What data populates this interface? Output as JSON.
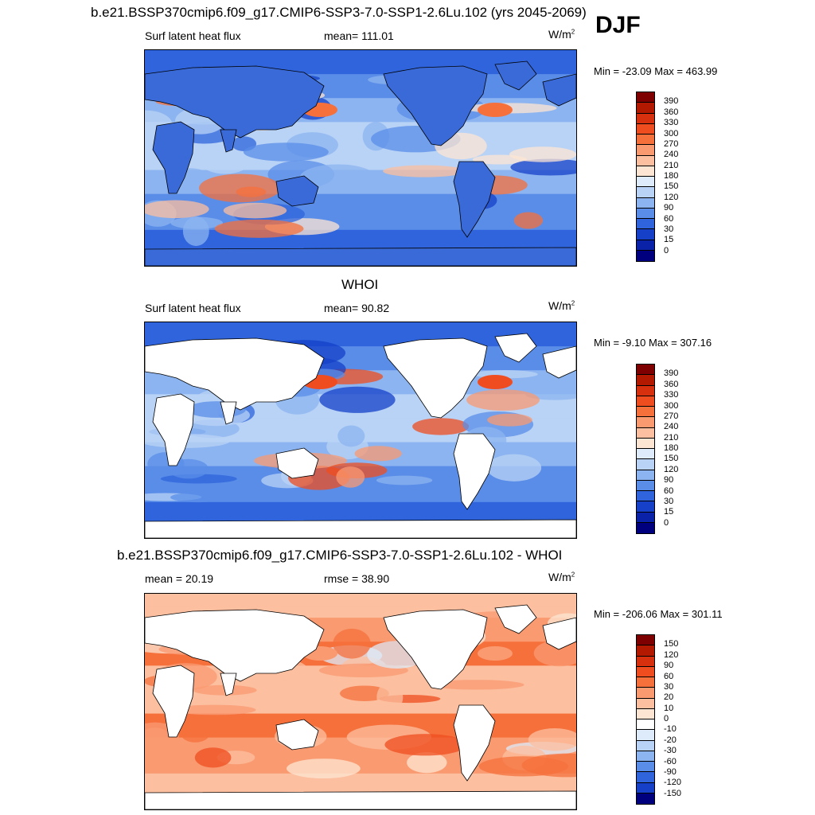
{
  "header": {
    "title": "b.e21.BSSP370cmip6.f09_g17.CMIP6-SSP3-7.0-SSP1-2.6Lu.102 (yrs 2045-2069)",
    "season": "DJF"
  },
  "panels": [
    {
      "id": "model",
      "title": "",
      "left": "Surf latent heat flux",
      "center": "mean= 111.01",
      "units_base": "W/m",
      "units_exp": "2",
      "minmax": "Min = -23.09 Max = 463.99",
      "colorbar": {
        "labels": [
          "390",
          "360",
          "330",
          "300",
          "270",
          "240",
          "210",
          "180",
          "150",
          "120",
          "90",
          "60",
          "30",
          "15",
          "0"
        ],
        "colors": [
          "#7f0000",
          "#b31800",
          "#d7300f",
          "#ef4d1f",
          "#f6703c",
          "#fa9a71",
          "#fcbf9f",
          "#fde5d3",
          "#deebfa",
          "#b9d3f6",
          "#8cb4f0",
          "#5a8de8",
          "#2f64dc",
          "#1640c8",
          "#0a22a8",
          "#00007e"
        ]
      },
      "ocean_palette": [
        "#1640c8",
        "#2f64dc",
        "#5a8de8",
        "#8cb4f0",
        "#b9d3f6",
        "#fde5d3",
        "#fcbf9f",
        "#f6703c"
      ],
      "land_color": "#3a6ad8"
    },
    {
      "id": "obs",
      "title": "WHOI",
      "left": "Surf latent heat flux",
      "center": "mean=  90.82",
      "units_base": "W/m",
      "units_exp": "2",
      "minmax": "Min =  -9.10 Max = 307.16",
      "colorbar": {
        "labels": [
          "390",
          "360",
          "330",
          "300",
          "270",
          "240",
          "210",
          "180",
          "150",
          "120",
          "90",
          "60",
          "30",
          "15",
          "0"
        ],
        "colors": [
          "#7f0000",
          "#b31800",
          "#d7300f",
          "#ef4d1f",
          "#f6703c",
          "#fa9a71",
          "#fcbf9f",
          "#fde5d3",
          "#deebfa",
          "#b9d3f6",
          "#8cb4f0",
          "#5a8de8",
          "#2f64dc",
          "#1640c8",
          "#0a22a8",
          "#00007e"
        ]
      },
      "ocean_palette": [
        "#1640c8",
        "#2f64dc",
        "#5a8de8",
        "#8cb4f0",
        "#b9d3f6",
        "#5a8de8",
        "#fa9a71",
        "#ef4d1f"
      ],
      "land_color": "#ffffff"
    },
    {
      "id": "diff",
      "title": "b.e21.BSSP370cmip6.f09_g17.CMIP6-SSP3-7.0-SSP1-2.6Lu.102 - WHOI",
      "left": "mean =  20.19",
      "center": "rmse =  38.90",
      "units_base": "W/m",
      "units_exp": "2",
      "minmax": "Min = -206.06 Max = 301.11",
      "colorbar": {
        "labels": [
          "150",
          "120",
          "90",
          "60",
          "30",
          "20",
          "10",
          "0",
          "-10",
          "-20",
          "-30",
          "-60",
          "-90",
          "-120",
          "-150"
        ],
        "colors": [
          "#7f0000",
          "#b31800",
          "#d7300f",
          "#ef4d1f",
          "#f6703c",
          "#fa9a71",
          "#fcbf9f",
          "#fde5d3",
          "#ffffff",
          "#deebfa",
          "#b9d3f6",
          "#8cb4f0",
          "#5a8de8",
          "#2f64dc",
          "#1640c8",
          "#00007e"
        ]
      },
      "ocean_palette": [
        "#fde5d3",
        "#fcbf9f",
        "#fa9a71",
        "#f6703c",
        "#fcbf9f",
        "#deebfa",
        "#ef4d1f",
        "#fa9a71"
      ],
      "land_color": "#ffffff"
    }
  ]
}
